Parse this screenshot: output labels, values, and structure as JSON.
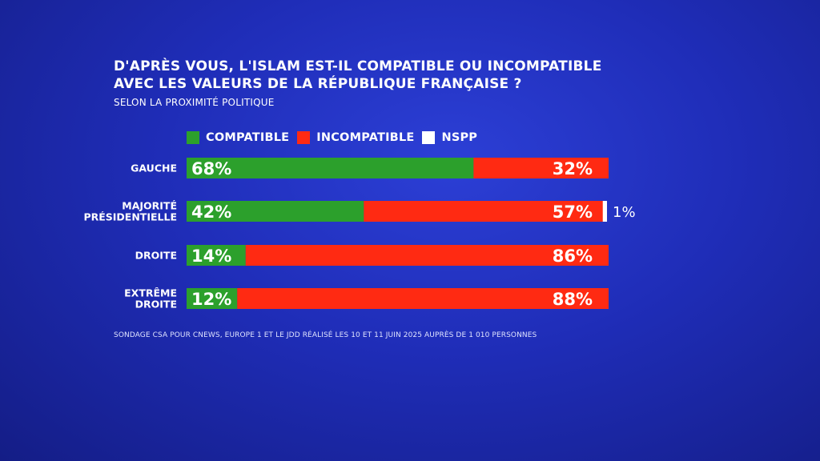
{
  "title_line1": "D'APRÈS VOUS, L'ISLAM EST-IL COMPATIBLE OU INCOMPATIBLE",
  "title_line2": "AVEC LES VALEURS DE LA RÉPUBLIQUE FRANÇAISE ?",
  "subtitle": "SELON LA PROXIMITÉ POLITIQUE",
  "legend": [
    {
      "label": "COMPATIBLE",
      "color": "#2ca02c"
    },
    {
      "label": "INCOMPATIBLE",
      "color": "#ff2a12"
    },
    {
      "label": "NSPP",
      "color": "#ffffff"
    }
  ],
  "source": "SONDAGE CSA POUR CNEWS, EUROPE 1 ET LE JDD RÉALISÉ LES 10 ET 11 JUIN 2025 AUPRÈS DE 1 010 PERSONNES",
  "chart_data": {
    "type": "bar",
    "orientation": "horizontal-stacked",
    "categories": [
      [
        "GAUCHE"
      ],
      [
        "MAJORITÉ",
        "PRÉSIDENTIELLE"
      ],
      [
        "DROITE"
      ],
      [
        "EXTRÊME",
        "DROITE"
      ]
    ],
    "series": [
      {
        "name": "COMPATIBLE",
        "color": "#2ca02c",
        "values": [
          68,
          42,
          14,
          12
        ],
        "labels": [
          "68%",
          "42%",
          "14%",
          "12%"
        ]
      },
      {
        "name": "INCOMPATIBLE",
        "color": "#ff2a12",
        "values": [
          32,
          57,
          86,
          88
        ],
        "labels": [
          "32%",
          "57%",
          "86%",
          "88%"
        ]
      },
      {
        "name": "NSPP",
        "color": "#ffffff",
        "values": [
          0,
          1,
          0,
          0
        ],
        "labels": [
          "",
          "1%",
          "",
          ""
        ]
      }
    ],
    "xlim": [
      0,
      100
    ],
    "unit": "%"
  }
}
